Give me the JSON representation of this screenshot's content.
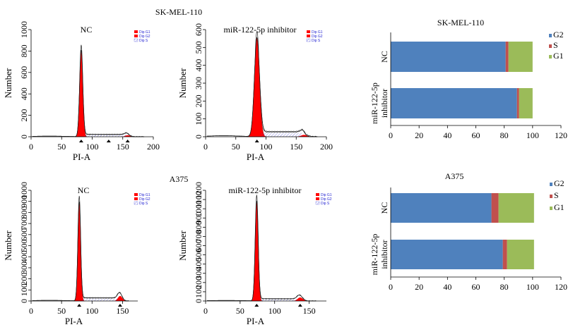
{
  "colors": {
    "g2": "#4f81bd",
    "s": "#c0504d",
    "g1": "#9bbb59",
    "fill_peak": "#ff0000",
    "legend_text": "#1f1fd1"
  },
  "histogram_legend": [
    "Dip G1",
    "Dip G2",
    "Dip S"
  ],
  "panels": {
    "sk_title": "SK-MEL-110",
    "a375_title": "A375"
  },
  "chart_data": [
    {
      "type": "area",
      "id": "sk-nc",
      "title": "NC",
      "xlabel": "PI-A",
      "ylabel": "Number",
      "xlim": [
        0,
        200
      ],
      "ylim": [
        0,
        1000
      ],
      "xticks": [
        "0",
        "50",
        "100",
        "150",
        "200"
      ],
      "yticks": [
        "0",
        "200",
        "400",
        "600",
        "800",
        "1000"
      ],
      "g1_peak": {
        "mean": 82,
        "sd": 2.6,
        "height": 800
      },
      "g2_peak": {
        "mean": 158,
        "sd": 4,
        "height": 20
      },
      "s_phase": {
        "from": 86,
        "to": 155,
        "level": 22
      },
      "markers": [
        82,
        127,
        158
      ]
    },
    {
      "type": "area",
      "id": "sk-inh",
      "title": "miR-122-5p inhibitor",
      "xlabel": "PI-A",
      "ylabel": "Number",
      "xlim": [
        0,
        200
      ],
      "ylim": [
        0,
        600
      ],
      "xticks": [
        "0",
        "50",
        "100",
        "150",
        "200"
      ],
      "yticks": [
        "0",
        "100",
        "200",
        "300",
        "400",
        "500",
        "600"
      ],
      "g1_peak": {
        "mean": 85,
        "sd": 4.2,
        "height": 555
      },
      "g2_peak": {
        "mean": 163,
        "sd": 5,
        "height": 15
      },
      "s_phase": {
        "from": 92,
        "to": 160,
        "level": 28
      },
      "markers": [
        85
      ]
    },
    {
      "type": "area",
      "id": "a375-nc",
      "title": "NC",
      "xlabel": "PI-A",
      "ylabel": "Number",
      "xlim": [
        0,
        175
      ],
      "ylim": [
        0,
        1000
      ],
      "xticks": [
        "0",
        "50",
        "100",
        "150"
      ],
      "yticks": [
        "0",
        "100",
        "200",
        "300",
        "400",
        "500",
        "600",
        "700",
        "800",
        "900",
        "1000"
      ],
      "g1_peak": {
        "mean": 79,
        "sd": 2.3,
        "height": 890
      },
      "g2_peak": {
        "mean": 146,
        "sd": 3.6,
        "height": 65
      },
      "s_phase": {
        "from": 84,
        "to": 142,
        "level": 28
      },
      "markers": [
        79,
        146
      ]
    },
    {
      "type": "area",
      "id": "a375-inh",
      "title": "miR-122-5p inhibitor",
      "xlabel": "PI-A",
      "ylabel": "Number",
      "xlim": [
        0,
        175
      ],
      "ylim": [
        0,
        1200
      ],
      "xticks": [
        "0",
        "50",
        "100",
        "150"
      ],
      "yticks": [
        "0",
        "100",
        "200",
        "300",
        "400",
        "500",
        "600",
        "700",
        "800",
        "900",
        "1000",
        "1100",
        "1200"
      ],
      "g1_peak": {
        "mean": 74,
        "sd": 2.2,
        "height": 1080
      },
      "g2_peak": {
        "mean": 137,
        "sd": 3.8,
        "height": 55
      },
      "s_phase": {
        "from": 79,
        "to": 133,
        "level": 24
      },
      "markers": [
        74,
        137
      ]
    },
    {
      "type": "bar",
      "id": "sk-bar",
      "orientation": "horizontal-stacked",
      "title": "SK-MEL-110",
      "categories": [
        "NC",
        "miR-122-5p inhibitor"
      ],
      "xlim": [
        0,
        120
      ],
      "xticks": [
        "0",
        "20",
        "40",
        "60",
        "80",
        "100",
        "120"
      ],
      "series": [
        {
          "name": "G2",
          "values": [
            81,
            89
          ]
        },
        {
          "name": "S",
          "values": [
            2,
            1.5
          ]
        },
        {
          "name": "G1",
          "values": [
            17,
            9.5
          ]
        }
      ],
      "legend": "top-right"
    },
    {
      "type": "bar",
      "id": "a375-bar",
      "orientation": "horizontal-stacked",
      "title": "A375",
      "categories": [
        "NC",
        "miR-122-5p inhibitor"
      ],
      "xlim": [
        0,
        120
      ],
      "xticks": [
        "0",
        "20",
        "40",
        "60",
        "80",
        "100",
        "120"
      ],
      "series": [
        {
          "name": "G2",
          "values": [
            71,
            79
          ]
        },
        {
          "name": "S",
          "values": [
            5,
            3
          ]
        },
        {
          "name": "G1",
          "values": [
            25,
            19
          ]
        }
      ],
      "legend": "top-right"
    }
  ]
}
